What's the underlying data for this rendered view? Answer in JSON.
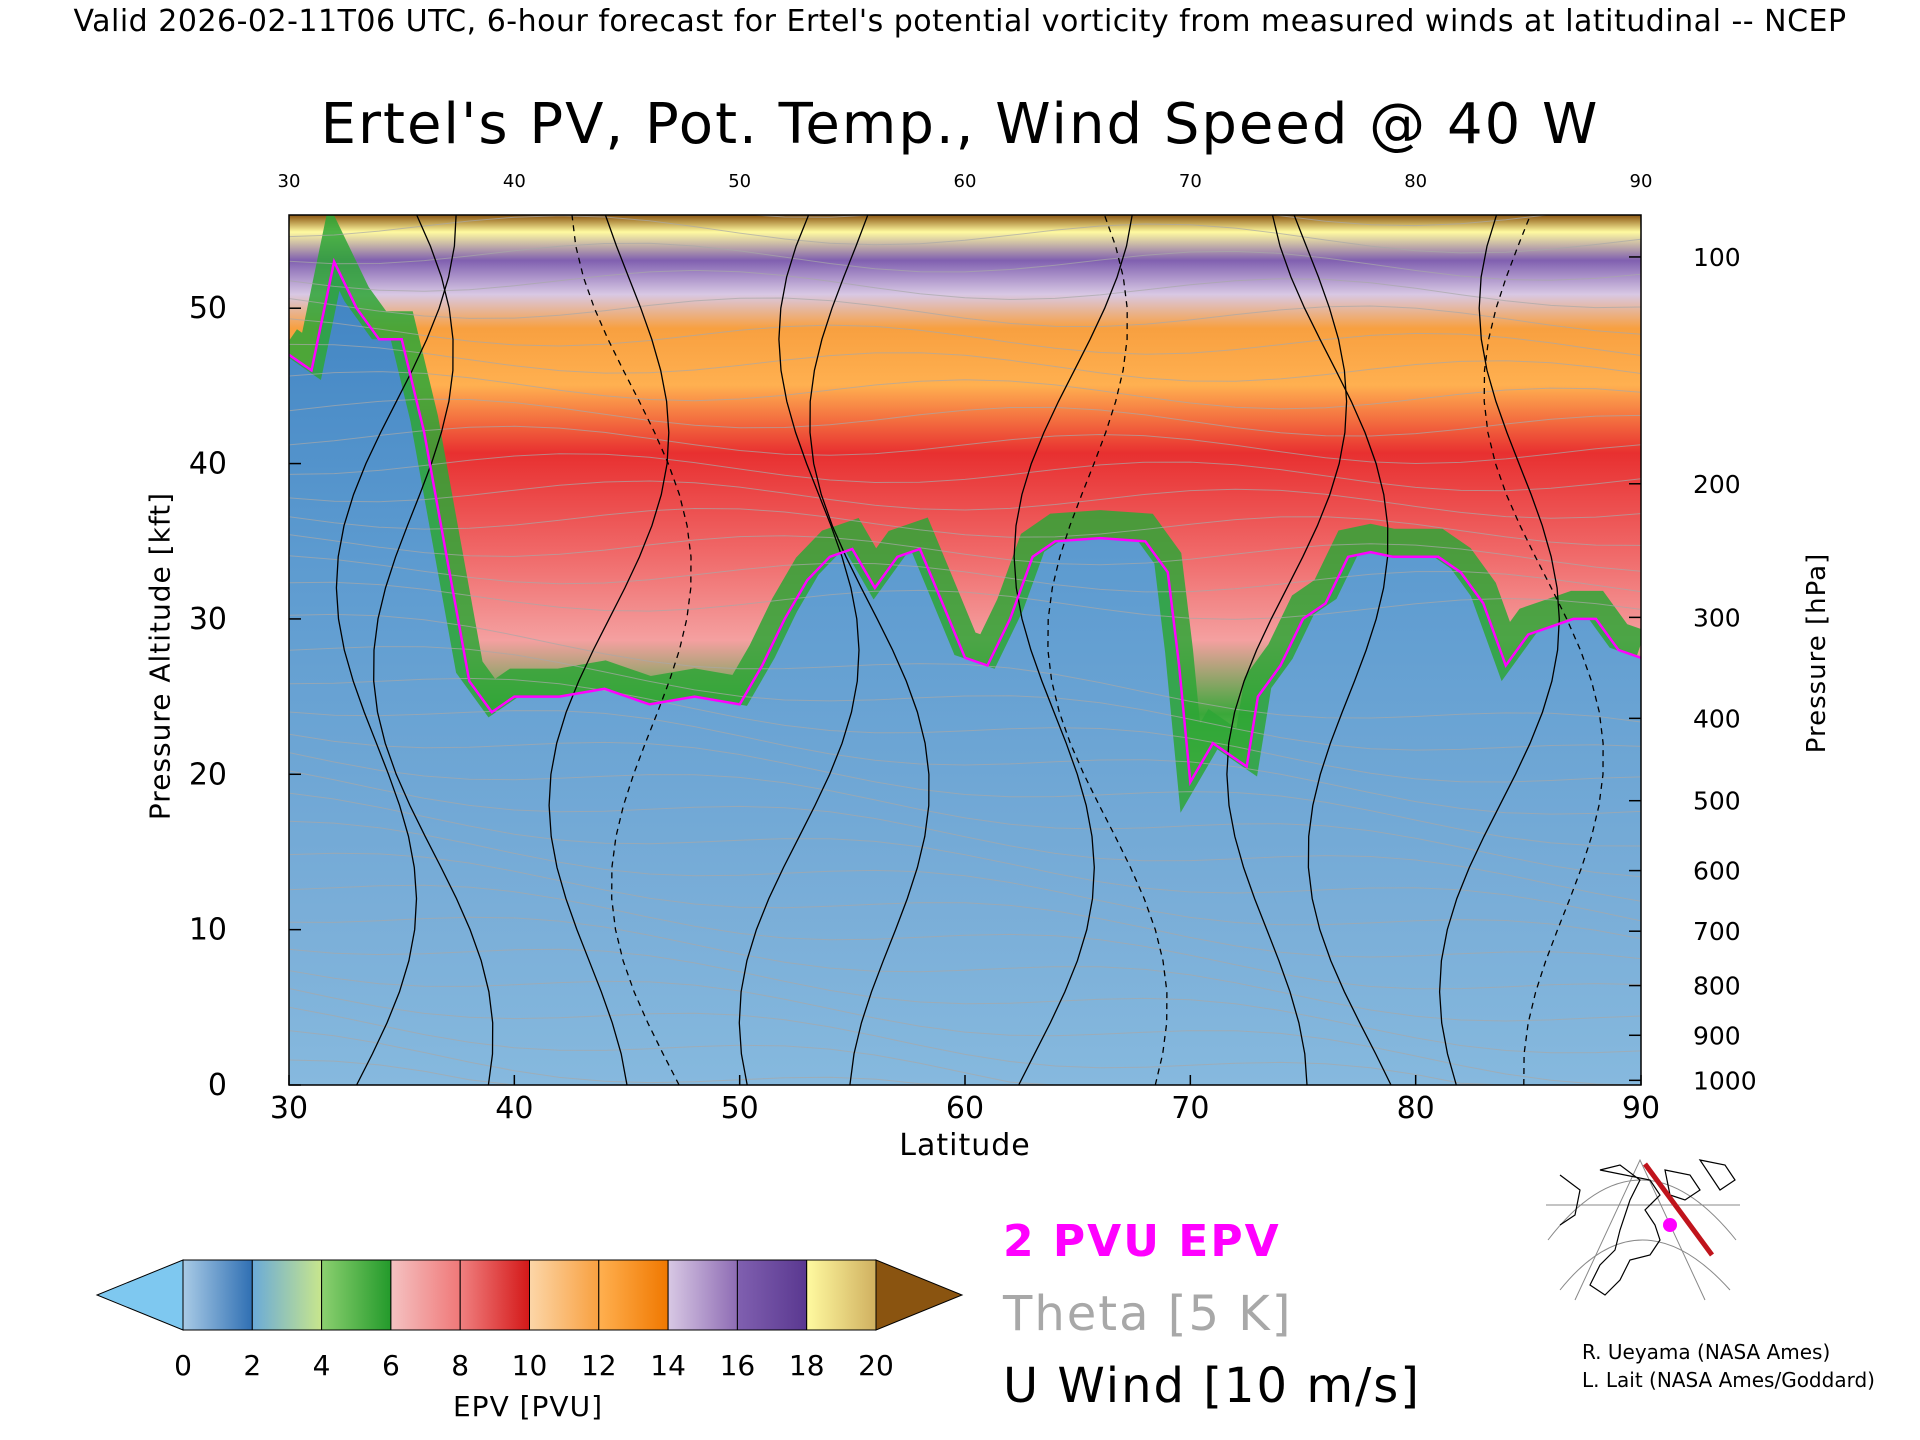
{
  "header": {
    "valid_line": "Valid 2026-02-11T06 UTC, 6-hour forecast for Ertel's potential vorticity from measured winds at latitudinal -- NCEP"
  },
  "chart_data": {
    "type": "heatmap",
    "title": "Ertel's PV, Pot. Temp., Wind Speed @ 40 W",
    "xlabel": "Latitude",
    "ylabel": "Pressure Altitude [kft]",
    "y2label": "Pressure [hPa]",
    "xlim": [
      30,
      90
    ],
    "ylim": [
      0,
      56
    ],
    "x_ticks": [
      30,
      40,
      50,
      60,
      70,
      80,
      90
    ],
    "y_ticks": [
      0,
      10,
      20,
      30,
      40,
      50
    ],
    "pressure_ticks": [
      {
        "label": "100",
        "alt": 53.3
      },
      {
        "label": "200",
        "alt": 38.7
      },
      {
        "label": "300",
        "alt": 30.1
      },
      {
        "label": "400",
        "alt": 23.6
      },
      {
        "label": "500",
        "alt": 18.3
      },
      {
        "label": "600",
        "alt": 13.8
      },
      {
        "label": "700",
        "alt": 9.9
      },
      {
        "label": "800",
        "alt": 6.4
      },
      {
        "label": "900",
        "alt": 3.2
      },
      {
        "label": "1000",
        "alt": 0.3
      }
    ],
    "tropopause_2pvu": [
      [
        30,
        47
      ],
      [
        31,
        46
      ],
      [
        32,
        53
      ],
      [
        33,
        50
      ],
      [
        34,
        48
      ],
      [
        35,
        48
      ],
      [
        36,
        42
      ],
      [
        37,
        34
      ],
      [
        38,
        26
      ],
      [
        39,
        24
      ],
      [
        40,
        25
      ],
      [
        42,
        25
      ],
      [
        44,
        25.5
      ],
      [
        46,
        24.5
      ],
      [
        48,
        25
      ],
      [
        50,
        24.5
      ],
      [
        51,
        27
      ],
      [
        52,
        30
      ],
      [
        53,
        32.5
      ],
      [
        54,
        34
      ],
      [
        55,
        34.5
      ],
      [
        56,
        32
      ],
      [
        57,
        34
      ],
      [
        58,
        34.5
      ],
      [
        59,
        31
      ],
      [
        60,
        27.5
      ],
      [
        61,
        27
      ],
      [
        62,
        30
      ],
      [
        63,
        34
      ],
      [
        64,
        35
      ],
      [
        66,
        35.2
      ],
      [
        68,
        35
      ],
      [
        69,
        33
      ],
      [
        69.5,
        27
      ],
      [
        70,
        19.5
      ],
      [
        71,
        22
      ],
      [
        72,
        21
      ],
      [
        72.5,
        20.5
      ],
      [
        73,
        25
      ],
      [
        74,
        27
      ],
      [
        75,
        30
      ],
      [
        76,
        31
      ],
      [
        77,
        34
      ],
      [
        78,
        34.3
      ],
      [
        79,
        34
      ],
      [
        80,
        34
      ],
      [
        81,
        34
      ],
      [
        82,
        33
      ],
      [
        83,
        31
      ],
      [
        84,
        27
      ],
      [
        85,
        29
      ],
      [
        86,
        29.5
      ],
      [
        87,
        30
      ],
      [
        88,
        30
      ],
      [
        89,
        28
      ],
      [
        90,
        27.5
      ]
    ],
    "epv_colorbar": {
      "label": "EPV [PVU]",
      "min": 0,
      "max": 20,
      "tick_labels": [
        "0",
        "2",
        "4",
        "6",
        "8",
        "10",
        "12",
        "14",
        "16",
        "18",
        "20"
      ],
      "under_color": "#7ec8f0",
      "over_color": "#8a5410",
      "bins": [
        {
          "from": 0,
          "to": 2,
          "colors": [
            "#a9cbe6",
            "#2f6fb3"
          ]
        },
        {
          "from": 2,
          "to": 4,
          "colors": [
            "#6aaad8",
            "#c8e68c"
          ]
        },
        {
          "from": 4,
          "to": 6,
          "colors": [
            "#8cd070",
            "#239a2b"
          ]
        },
        {
          "from": 6,
          "to": 8,
          "colors": [
            "#f4c2c2",
            "#f07878"
          ]
        },
        {
          "from": 8,
          "to": 10,
          "colors": [
            "#f08080",
            "#d41818"
          ]
        },
        {
          "from": 10,
          "to": 12,
          "colors": [
            "#fcd6a8",
            "#f8a040"
          ]
        },
        {
          "from": 12,
          "to": 14,
          "colors": [
            "#ffb050",
            "#f07800"
          ]
        },
        {
          "from": 14,
          "to": 16,
          "colors": [
            "#d8c8e4",
            "#8e6cb4"
          ]
        },
        {
          "from": 16,
          "to": 18,
          "colors": [
            "#8060b0",
            "#5a3890"
          ]
        },
        {
          "from": 18,
          "to": 20,
          "colors": [
            "#fffaa0",
            "#d0b060"
          ]
        }
      ]
    },
    "legend": {
      "epv_line": "2 PVU EPV",
      "theta": "Theta [5 K]",
      "uwind": "U Wind [10 m/s]"
    },
    "colors": {
      "tropopause": "#ff00ff",
      "theta": "#a8a8a8",
      "uwind": "#000000"
    }
  },
  "map_inset": {
    "point_color": "#ff00ff",
    "track_color": "#c0141c"
  },
  "credits": {
    "line1": "R. Ueyama (NASA Ames)",
    "line2": "L. Lait (NASA Ames/Goddard)"
  }
}
